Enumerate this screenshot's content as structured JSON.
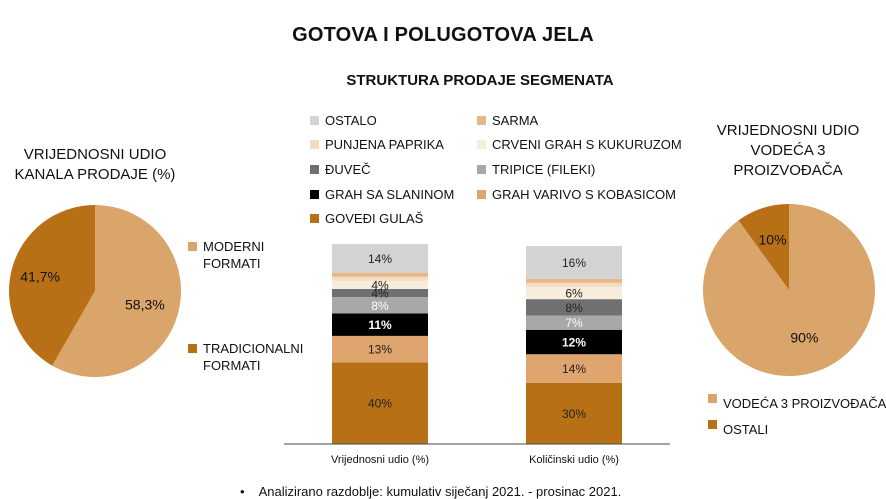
{
  "header": {
    "title": "GOTOVA I POLUGOTOVA JELA",
    "subtitle": "STRUKTURA PRODAJE SEGMENATA"
  },
  "left_pie": {
    "title_line1": "VRIJEDNOSNI UDIO",
    "title_line2": "KANALA PRODAJE (%)",
    "legend": [
      {
        "line1": "MODERNI",
        "line2": "FORMATI",
        "color": "#d9a56a"
      },
      {
        "line1": "TRADICIONALNI",
        "line2": "FORMATI",
        "color": "#b87016"
      }
    ]
  },
  "right_pie": {
    "title_line1": "VRIJEDNOSNI UDIO",
    "title_line2": "VODEĆA 3",
    "title_line3": "PROIZVOĐAČA",
    "legend": [
      {
        "label": "VODEĆA 3 PROIZVOĐAČA",
        "color": "#d9a56a"
      },
      {
        "label": "OSTALI",
        "color": "#b87016"
      }
    ]
  },
  "bar_legend": [
    {
      "label": "OSTALO",
      "color": "#d3d3d3"
    },
    {
      "label": "SARMA",
      "color": "#e6b887"
    },
    {
      "label": "PUNJENA PAPRIKA",
      "color": "#f4dcc2"
    },
    {
      "label": "CRVENI GRAH S KUKURUZOM",
      "color": "#f8ecdc"
    },
    {
      "label": "ĐUVEČ",
      "color": "#707070"
    },
    {
      "label": "TRIPICE (FILEKI)",
      "color": "#a8a8a8"
    },
    {
      "label": "GRAH SA SLANINOM",
      "color": "#000000"
    },
    {
      "label": "GRAH VARIVO S KOBASICOM",
      "color": "#dfa56f"
    },
    {
      "label": "GOVEĐI GULAŠ",
      "color": "#b87016"
    }
  ],
  "footnote": "Analizirano razdoblje: kumulativ siječanj 2021. - prosinac 2021.",
  "chart_data": [
    {
      "type": "pie",
      "title": "VRIJEDNOSNI UDIO KANALA PRODAJE (%)",
      "labels": [
        "MODERNI FORMATI",
        "TRADICIONALNI FORMATI"
      ],
      "values": [
        58.3,
        41.7
      ],
      "value_labels": [
        "58,3%",
        "41,7%"
      ],
      "colors": [
        "#d9a56a",
        "#b87016"
      ],
      "legend_position": "right"
    },
    {
      "type": "bar",
      "stacked": true,
      "title": "STRUKTURA PRODAJE SEGMENATA",
      "categories": [
        "Vrijednosni udio (%)",
        "Količinski udio (%)"
      ],
      "series": [
        {
          "name": "GOVEĐI GULAŠ",
          "color": "#b87016",
          "values": [
            40,
            30
          ],
          "labels": [
            "40%",
            "30%"
          ],
          "label_color": "#222222"
        },
        {
          "name": "GRAH VARIVO S KOBASICOM",
          "color": "#dfa56f",
          "values": [
            13,
            14
          ],
          "labels": [
            "13%",
            "14%"
          ],
          "label_color": "#222222"
        },
        {
          "name": "GRAH SA SLANINOM",
          "color": "#000000",
          "values": [
            11,
            12
          ],
          "labels": [
            "11%",
            "12%"
          ],
          "label_color": "#ffffff"
        },
        {
          "name": "TRIPICE (FILEKI)",
          "color": "#a8a8a8",
          "values": [
            8,
            7
          ],
          "labels": [
            "8%",
            "7%"
          ],
          "label_color": "#ffffff"
        },
        {
          "name": "ĐUVEČ",
          "color": "#707070",
          "values": [
            4,
            8
          ],
          "labels": [
            "4%",
            "8%"
          ],
          "label_color": "#222222"
        },
        {
          "name": "CRVENI GRAH S KUKURUZOM",
          "color": "#f8ecdc",
          "values": [
            4,
            6
          ],
          "labels": [
            "4%",
            "6%"
          ],
          "label_color": "#222222"
        },
        {
          "name": "PUNJENA PAPRIKA",
          "color": "#f4dcc2",
          "values": [
            2,
            2
          ],
          "labels": [
            "",
            ""
          ],
          "label_color": "#222222"
        },
        {
          "name": "SARMA",
          "color": "#e6b887",
          "values": [
            2,
            2
          ],
          "labels": [
            "",
            ""
          ],
          "label_color": "#222222"
        },
        {
          "name": "OSTALO",
          "color": "#d3d3d3",
          "values": [
            14,
            16
          ],
          "labels": [
            "14%",
            "16%"
          ],
          "label_color": "#222222"
        }
      ],
      "ylim": [
        0,
        100
      ],
      "grid": false,
      "legend_position": "top"
    },
    {
      "type": "pie",
      "title": "VRIJEDNOSNI UDIO VODEĆA 3 PROIZVOĐAČA",
      "labels": [
        "VODEĆA 3 PROIZVOĐAČA",
        "OSTALI"
      ],
      "values": [
        90,
        10
      ],
      "value_labels": [
        "90%",
        "10%"
      ],
      "colors": [
        "#d9a56a",
        "#b87016"
      ],
      "legend_position": "bottom"
    }
  ]
}
